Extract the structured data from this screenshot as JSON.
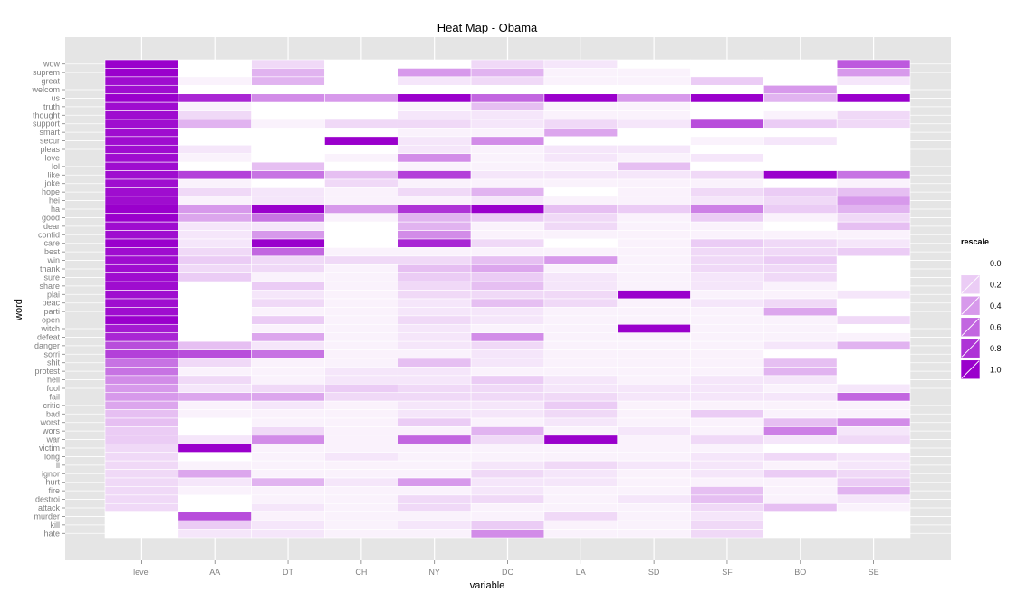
{
  "chart_data": {
    "type": "heatmap",
    "title": "Heat Map - Obama",
    "xlabel": "variable",
    "ylabel": "word",
    "columns": [
      "level",
      "AA",
      "DT",
      "CH",
      "NY",
      "DC",
      "LA",
      "SD",
      "SF",
      "BO",
      "SE"
    ],
    "rows": [
      "wow",
      "suprem",
      "great",
      "welcom",
      "us",
      "truth",
      "thought",
      "support",
      "smart",
      "secur",
      "pleas",
      "love",
      "lol",
      "like",
      "joke",
      "hope",
      "hei",
      "ha",
      "good",
      "dear",
      "confid",
      "care",
      "best",
      "win",
      "thank",
      "sure",
      "share",
      "plai",
      "peac",
      "parti",
      "open",
      "witch",
      "defeat",
      "danger",
      "sorri",
      "shit",
      "protest",
      "hell",
      "fool",
      "fail",
      "critic",
      "bad",
      "worst",
      "wors",
      "war",
      "victim",
      "long",
      "li",
      "ignor",
      "hurt",
      "fire",
      "destroi",
      "attack",
      "murder",
      "kill",
      "hate"
    ],
    "values": [
      [
        1.0,
        0.0,
        0.15,
        0.0,
        0.0,
        0.15,
        0.1,
        0.0,
        0.0,
        0.0,
        0.65
      ],
      [
        1.0,
        0.0,
        0.3,
        0.0,
        0.4,
        0.3,
        0.05,
        0.05,
        0.0,
        0.0,
        0.4
      ],
      [
        0.95,
        0.05,
        0.3,
        0.0,
        0.1,
        0.15,
        0.05,
        0.05,
        0.2,
        0.0,
        0.1
      ],
      [
        0.95,
        0.0,
        0.0,
        0.0,
        0.0,
        0.0,
        0.0,
        0.0,
        0.0,
        0.4,
        0.0
      ],
      [
        1.0,
        0.85,
        0.45,
        0.4,
        1.0,
        0.6,
        1.0,
        0.4,
        1.0,
        0.3,
        1.0
      ],
      [
        0.95,
        0.05,
        0.0,
        0.0,
        0.05,
        0.25,
        0.05,
        0.05,
        0.0,
        0.0,
        0.0
      ],
      [
        0.95,
        0.15,
        0.0,
        0.0,
        0.1,
        0.1,
        0.05,
        0.05,
        0.0,
        0.05,
        0.15
      ],
      [
        0.95,
        0.3,
        0.05,
        0.15,
        0.15,
        0.1,
        0.15,
        0.1,
        0.7,
        0.2,
        0.15
      ],
      [
        0.95,
        0.0,
        0.0,
        0.0,
        0.05,
        0.05,
        0.35,
        0.0,
        0.0,
        0.0,
        0.0
      ],
      [
        0.95,
        0.0,
        0.0,
        1.0,
        0.1,
        0.45,
        0.0,
        0.0,
        0.05,
        0.1,
        0.0
      ],
      [
        0.95,
        0.1,
        0.0,
        0.0,
        0.1,
        0.05,
        0.1,
        0.1,
        0.0,
        0.0,
        0.0
      ],
      [
        0.95,
        0.05,
        0.0,
        0.05,
        0.45,
        0.05,
        0.1,
        0.05,
        0.1,
        0.0,
        0.0
      ],
      [
        0.95,
        0.0,
        0.25,
        0.0,
        0.05,
        0.05,
        0.05,
        0.25,
        0.0,
        0.0,
        0.0
      ],
      [
        0.95,
        0.75,
        0.55,
        0.25,
        0.75,
        0.1,
        0.1,
        0.1,
        0.15,
        1.0,
        0.55
      ],
      [
        0.95,
        0.05,
        0.0,
        0.15,
        0.05,
        0.05,
        0.05,
        0.05,
        0.05,
        0.0,
        0.05
      ],
      [
        0.95,
        0.15,
        0.1,
        0.05,
        0.15,
        0.3,
        0.0,
        0.05,
        0.15,
        0.2,
        0.25
      ],
      [
        0.95,
        0.05,
        0.1,
        0.05,
        0.05,
        0.1,
        0.05,
        0.05,
        0.1,
        0.15,
        0.4
      ],
      [
        1.0,
        0.4,
        1.0,
        0.4,
        0.8,
        1.0,
        0.25,
        0.2,
        0.5,
        0.2,
        0.3
      ],
      [
        1.0,
        0.35,
        0.55,
        0.05,
        0.3,
        0.2,
        0.15,
        0.05,
        0.2,
        0.05,
        0.15
      ],
      [
        0.95,
        0.1,
        0.1,
        0.0,
        0.3,
        0.05,
        0.15,
        0.05,
        0.05,
        0.0,
        0.25
      ],
      [
        0.95,
        0.1,
        0.4,
        0.0,
        0.45,
        0.05,
        0.05,
        0.05,
        0.05,
        0.05,
        0.05
      ],
      [
        1.0,
        0.1,
        1.0,
        0.0,
        0.85,
        0.15,
        0.0,
        0.05,
        0.2,
        0.15,
        0.1
      ],
      [
        0.95,
        0.15,
        0.6,
        0.05,
        0.05,
        0.05,
        0.05,
        0.05,
        0.15,
        0.15,
        0.2
      ],
      [
        0.95,
        0.2,
        0.15,
        0.15,
        0.15,
        0.25,
        0.4,
        0.05,
        0.15,
        0.2,
        0.0
      ],
      [
        0.95,
        0.15,
        0.15,
        0.05,
        0.25,
        0.35,
        0.05,
        0.05,
        0.15,
        0.15,
        0.0
      ],
      [
        0.95,
        0.2,
        0.05,
        0.05,
        0.2,
        0.2,
        0.1,
        0.05,
        0.1,
        0.15,
        0.0
      ],
      [
        0.95,
        0.0,
        0.2,
        0.05,
        0.15,
        0.25,
        0.1,
        0.05,
        0.1,
        0.05,
        0.0
      ],
      [
        0.95,
        0.0,
        0.1,
        0.05,
        0.15,
        0.15,
        0.15,
        1.0,
        0.05,
        0.05,
        0.1
      ],
      [
        0.95,
        0.0,
        0.15,
        0.05,
        0.1,
        0.25,
        0.15,
        0.05,
        0.1,
        0.15,
        0.0
      ],
      [
        0.95,
        0.0,
        0.05,
        0.05,
        0.1,
        0.1,
        0.05,
        0.05,
        0.05,
        0.35,
        0.0
      ],
      [
        1.0,
        0.0,
        0.2,
        0.05,
        0.15,
        0.1,
        0.05,
        0.05,
        0.05,
        0.05,
        0.15
      ],
      [
        0.9,
        0.0,
        0.05,
        0.05,
        0.1,
        0.05,
        0.05,
        1.0,
        0.05,
        0.05,
        0.0
      ],
      [
        0.85,
        0.0,
        0.35,
        0.05,
        0.1,
        0.45,
        0.05,
        0.05,
        0.05,
        0.05,
        0.05
      ],
      [
        0.7,
        0.25,
        0.1,
        0.05,
        0.1,
        0.15,
        0.05,
        0.05,
        0.05,
        0.1,
        0.3
      ],
      [
        0.75,
        0.7,
        0.55,
        0.05,
        0.05,
        0.1,
        0.05,
        0.05,
        0.05,
        0.0,
        0.0
      ],
      [
        0.55,
        0.15,
        0.05,
        0.05,
        0.25,
        0.1,
        0.05,
        0.05,
        0.05,
        0.25,
        0.0
      ],
      [
        0.55,
        0.05,
        0.05,
        0.1,
        0.1,
        0.05,
        0.05,
        0.05,
        0.05,
        0.3,
        0.0
      ],
      [
        0.45,
        0.15,
        0.05,
        0.1,
        0.1,
        0.2,
        0.1,
        0.05,
        0.1,
        0.1,
        0.0
      ],
      [
        0.4,
        0.1,
        0.15,
        0.2,
        0.15,
        0.15,
        0.1,
        0.1,
        0.1,
        0.05,
        0.1
      ],
      [
        0.4,
        0.35,
        0.35,
        0.15,
        0.15,
        0.15,
        0.15,
        0.1,
        0.1,
        0.1,
        0.6
      ],
      [
        0.35,
        0.05,
        0.1,
        0.05,
        0.1,
        0.1,
        0.2,
        0.05,
        0.05,
        0.05,
        0.05
      ],
      [
        0.25,
        0.05,
        0.05,
        0.05,
        0.1,
        0.1,
        0.15,
        0.05,
        0.2,
        0.05,
        0.05
      ],
      [
        0.25,
        0.0,
        0.05,
        0.05,
        0.2,
        0.05,
        0.1,
        0.05,
        0.05,
        0.25,
        0.45
      ],
      [
        0.2,
        0.0,
        0.15,
        0.05,
        0.05,
        0.3,
        0.05,
        0.1,
        0.05,
        0.5,
        0.1
      ],
      [
        0.2,
        0.1,
        0.45,
        0.05,
        0.6,
        0.15,
        1.0,
        0.05,
        0.15,
        0.1,
        0.15
      ],
      [
        0.15,
        1.0,
        0.05,
        0.05,
        0.05,
        0.05,
        0.05,
        0.05,
        0.05,
        0.0,
        0.0
      ],
      [
        0.15,
        0.0,
        0.05,
        0.1,
        0.05,
        0.05,
        0.05,
        0.05,
        0.1,
        0.15,
        0.1
      ],
      [
        0.15,
        0.05,
        0.05,
        0.05,
        0.05,
        0.1,
        0.15,
        0.1,
        0.1,
        0.05,
        0.1
      ],
      [
        0.15,
        0.35,
        0.05,
        0.05,
        0.05,
        0.15,
        0.1,
        0.05,
        0.1,
        0.2,
        0.15
      ],
      [
        0.15,
        0.1,
        0.3,
        0.1,
        0.4,
        0.1,
        0.1,
        0.05,
        0.05,
        0.05,
        0.2
      ],
      [
        0.15,
        0.05,
        0.05,
        0.05,
        0.05,
        0.1,
        0.05,
        0.05,
        0.25,
        0.05,
        0.3
      ],
      [
        0.15,
        0.0,
        0.05,
        0.05,
        0.15,
        0.15,
        0.05,
        0.1,
        0.25,
        0.05,
        0.1
      ],
      [
        0.15,
        0.0,
        0.1,
        0.05,
        0.15,
        0.05,
        0.05,
        0.05,
        0.15,
        0.25,
        0.05
      ],
      [
        0.0,
        0.7,
        0.05,
        0.05,
        0.05,
        0.05,
        0.15,
        0.05,
        0.1,
        0.0,
        0.0
      ],
      [
        0.0,
        0.2,
        0.1,
        0.05,
        0.1,
        0.2,
        0.05,
        0.05,
        0.15,
        0.0,
        0.0
      ],
      [
        0.0,
        0.1,
        0.1,
        0.05,
        0.05,
        0.45,
        0.05,
        0.05,
        0.15,
        0.0,
        0.0
      ]
    ],
    "legend": {
      "title": "rescale",
      "labels": [
        "0.0",
        "0.2",
        "0.4",
        "0.6",
        "0.8",
        "1.0"
      ],
      "placement": "right"
    },
    "scale": {
      "low": "#ffffff",
      "high": "#9a00cc",
      "range": [
        0,
        1
      ]
    },
    "grid": true
  }
}
